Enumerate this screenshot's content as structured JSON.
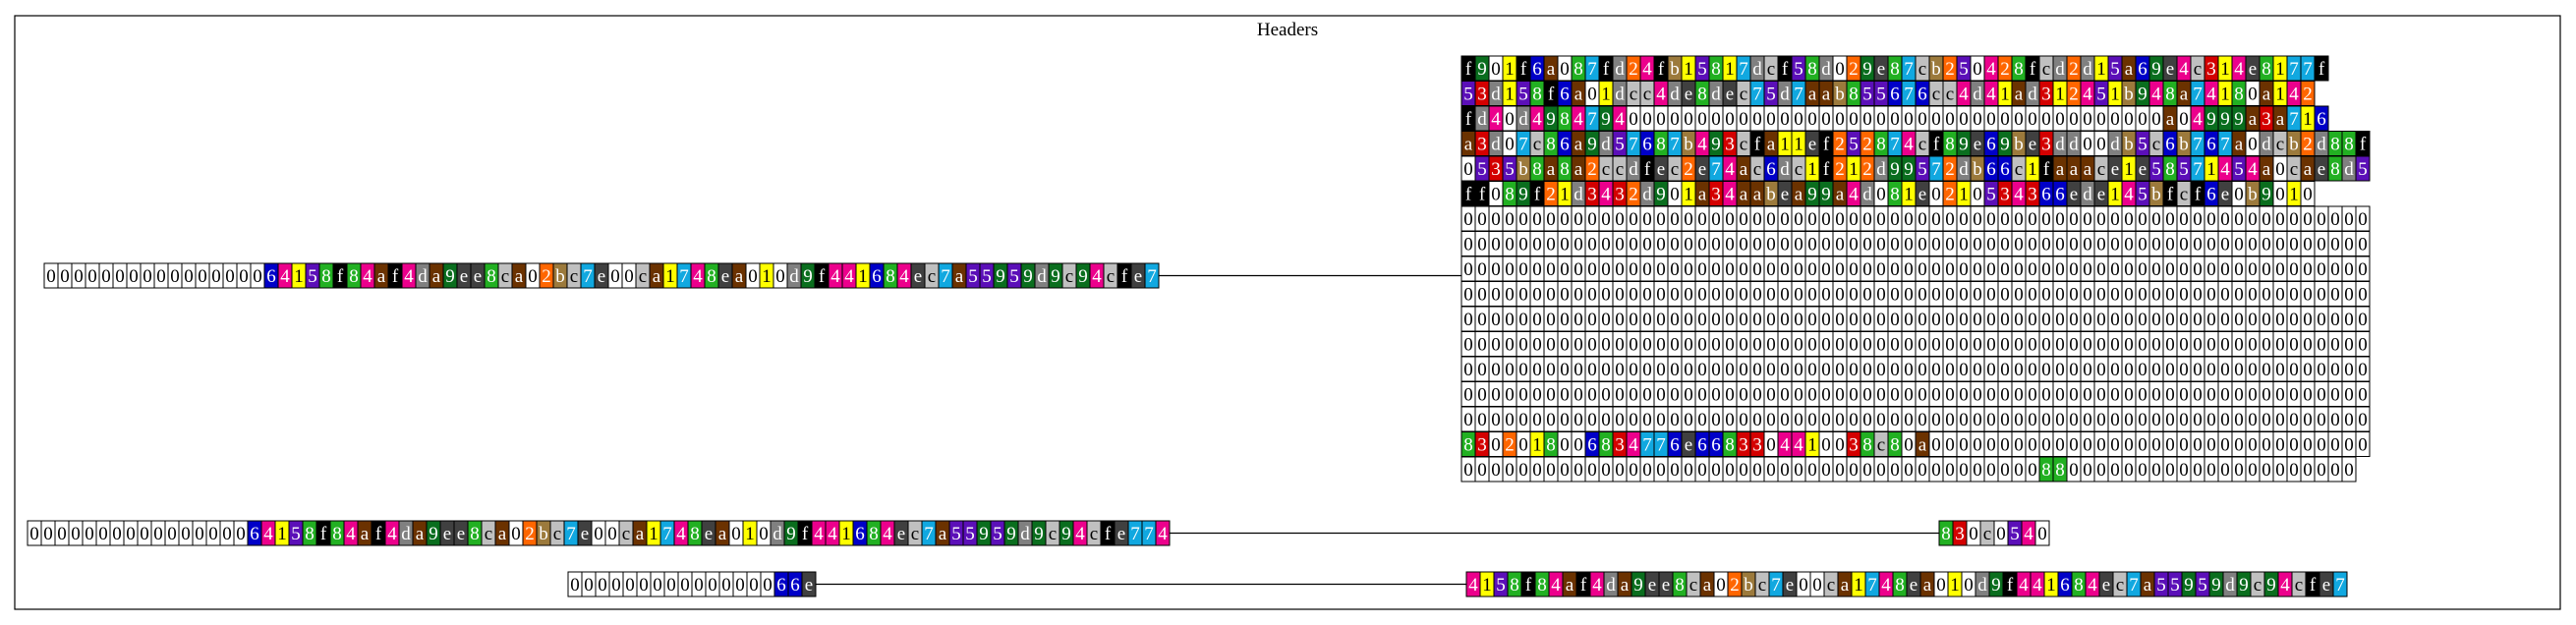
{
  "title": "Headers",
  "palette": {
    "0": "#ffffff",
    "1": "#ffff00",
    "2": "#ff6600",
    "3": "#d40000",
    "4": "#ec008c",
    "5": "#5b0fb8",
    "6": "#0000c8",
    "7": "#11a8e0",
    "8": "#22b022",
    "9": "#0a6e1e",
    "a": "#6b3200",
    "b": "#9c7a3c",
    "c": "#c0c0c0",
    "d": "#808080",
    "e": "#404040",
    "f": "#000000"
  },
  "light_text_digits": "0123456789abcdef",
  "dark_text_on": [
    "0",
    "1",
    "c"
  ],
  "rows": [
    {
      "id": "left-row-1",
      "cells": "000000000000000064158f84af4da9ee8ca02bc7e00ca1748ea010d9f441684ec7a55959d9c94cfe7"
    },
    {
      "id": "grid-row-1",
      "cells": "f901f6a087fd24fb15817dcf58d029e87cb250428fcd2d15a69e4c314e8177f"
    },
    {
      "id": "grid-row-2",
      "cells": "53d158f6a01dcc4de8dec75d7aab855676cc4d41ad312451b948a74180a142"
    },
    {
      "id": "grid-row-3",
      "cells": "fd40d4984794000000000000000000000000000000000000000a04999a3a716"
    },
    {
      "id": "grid-row-4",
      "cells": "a3d07c86a9d57687b493cfa11ef252874cf89e69be3dd00db5c6b767a0dcb2d88f"
    },
    {
      "id": "grid-row-5",
      "cells": "0535b8a8a2ccdfec2e74ac6dc1f212d99572db66c1faaace1e58571454a0cae8d5"
    },
    {
      "id": "grid-row-6",
      "cells": "ff089f21d3432d901a34aabea99a4d081e0210534366ede145bfcf6e0b9010"
    },
    {
      "id": "grid-row-7",
      "cells": "000000000000000000000000000000000000000000000000000000000000000000"
    },
    {
      "id": "grid-row-8",
      "cells": "000000000000000000000000000000000000000000000000000000000000000000"
    },
    {
      "id": "grid-row-9",
      "cells": "000000000000000000000000000000000000000000000000000000000000000000"
    },
    {
      "id": "grid-row-10",
      "cells": "000000000000000000000000000000000000000000000000000000000000000000"
    },
    {
      "id": "grid-row-11",
      "cells": "000000000000000000000000000000000000000000000000000000000000000000"
    },
    {
      "id": "grid-row-12",
      "cells": "000000000000000000000000000000000000000000000000000000000000000000"
    },
    {
      "id": "grid-row-13",
      "cells": "000000000000000000000000000000000000000000000000000000000000000000"
    },
    {
      "id": "grid-row-14",
      "cells": "000000000000000000000000000000000000000000000000000000000000000000"
    },
    {
      "id": "grid-row-15",
      "cells": "000000000000000000000000000000000000000000000000000000000000000000"
    },
    {
      "id": "grid-row-16",
      "cells": "8302018006834776e6683304410038c80a00000000000000000000000000000000"
    },
    {
      "id": "grid-row-17",
      "cells": "00000000000000000000000000000000000000000088000000000000000000000"
    },
    {
      "id": "left-row-2",
      "cells": "000000000000000064158f84af4da9ee8ca02bc7e00ca1748ea010d9f441684ec7a55959d9c94cfe774"
    },
    {
      "id": "mid-row-2",
      "cells": "830c0540"
    },
    {
      "id": "left-row-3",
      "cells": "00000000000000066e"
    },
    {
      "id": "right-row-3",
      "cells": "4158f84af4da9ee8ca02bc7e00ca1748ea010d9f441684ec7a55959d9c94cfe7"
    }
  ]
}
